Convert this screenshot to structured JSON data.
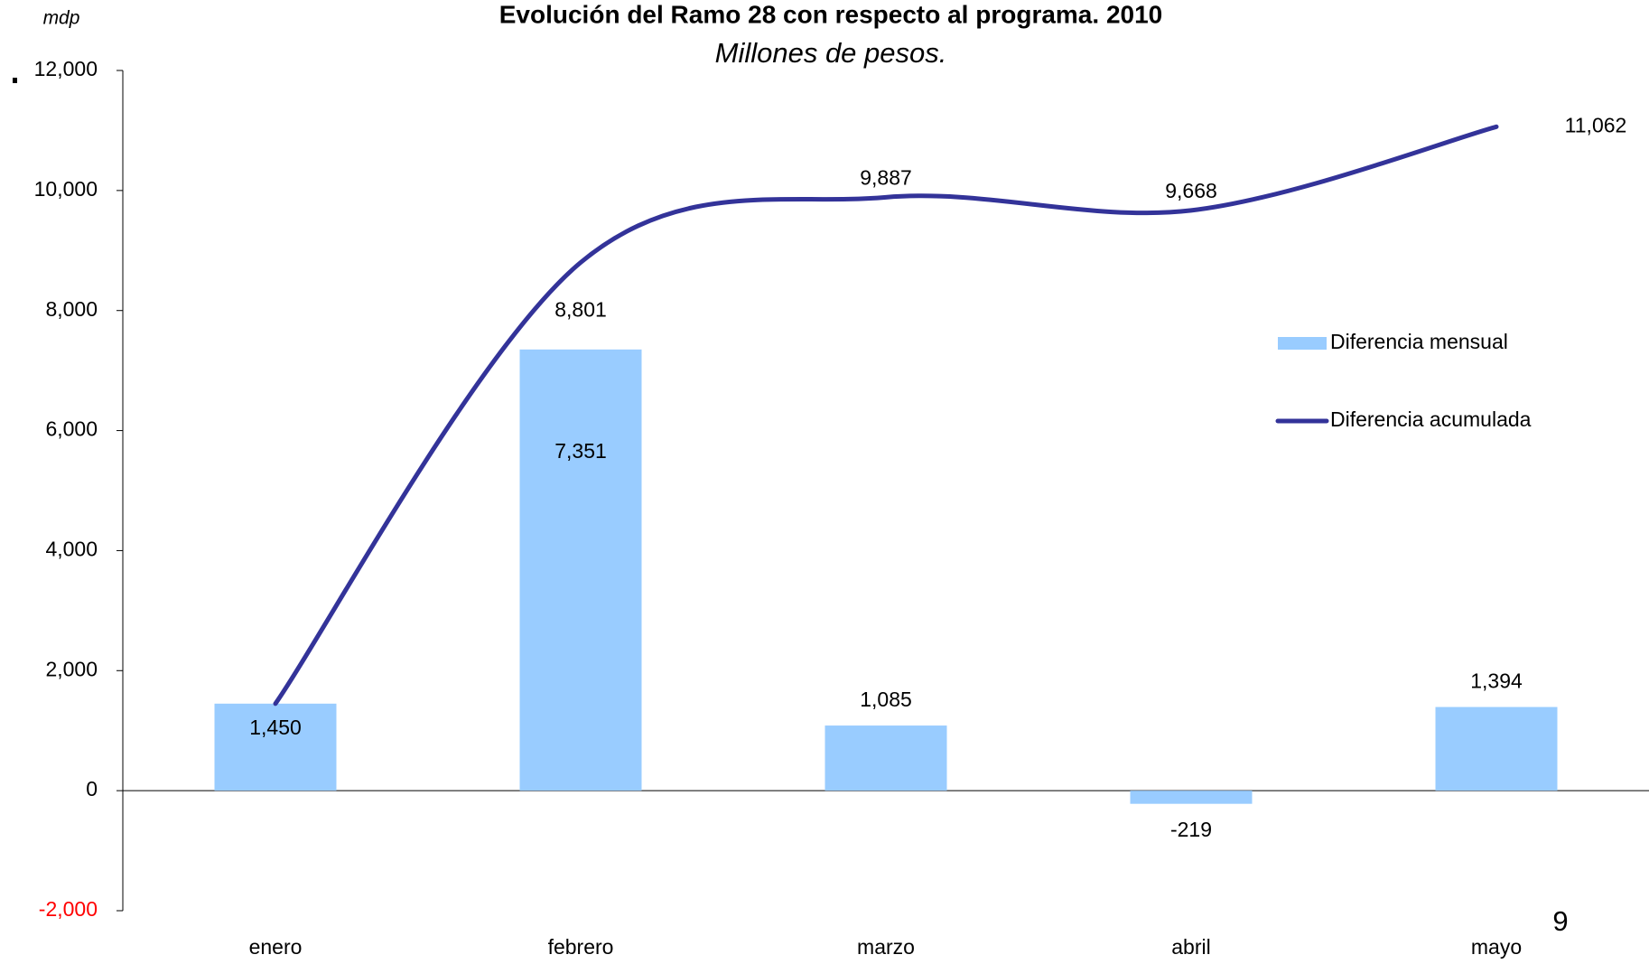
{
  "chart_data": {
    "type": "bar",
    "title": "Evolución del Ramo 28 con respecto al programa. 2010",
    "subtitle": "Millones de pesos.",
    "y_label": "mdp",
    "page_number": "9",
    "categories": [
      "enero",
      "febrero",
      "marzo",
      "abril",
      "mayo"
    ],
    "series": [
      {
        "name": "Diferencia mensual",
        "type": "bar",
        "color": "#99ccff",
        "values": [
          1450,
          7351,
          1085,
          -219,
          1394
        ],
        "value_labels": [
          "1,450",
          "7,351",
          "1,085",
          "-219",
          "1,394"
        ]
      },
      {
        "name": "Diferencia acumulada",
        "type": "line",
        "color": "#333399",
        "values": [
          1450,
          8801,
          9887,
          9668,
          11062
        ],
        "value_labels": [
          null,
          "8,801",
          "9,887",
          "9,668",
          "11,062"
        ]
      }
    ],
    "ylim": [
      -2000,
      12000
    ],
    "yticks": [
      {
        "value": -2000,
        "label": "-2,000",
        "color": "#ff0000"
      },
      0,
      {
        "value": 2000,
        "label": "2,000"
      },
      {
        "value": 4000,
        "label": "4,000"
      },
      {
        "value": 6000,
        "label": "6,000"
      },
      {
        "value": 8000,
        "label": "8,000"
      },
      {
        "value": 10000,
        "label": "10,000"
      },
      {
        "value": 12000,
        "label": "12,000"
      }
    ],
    "legend": "right"
  }
}
